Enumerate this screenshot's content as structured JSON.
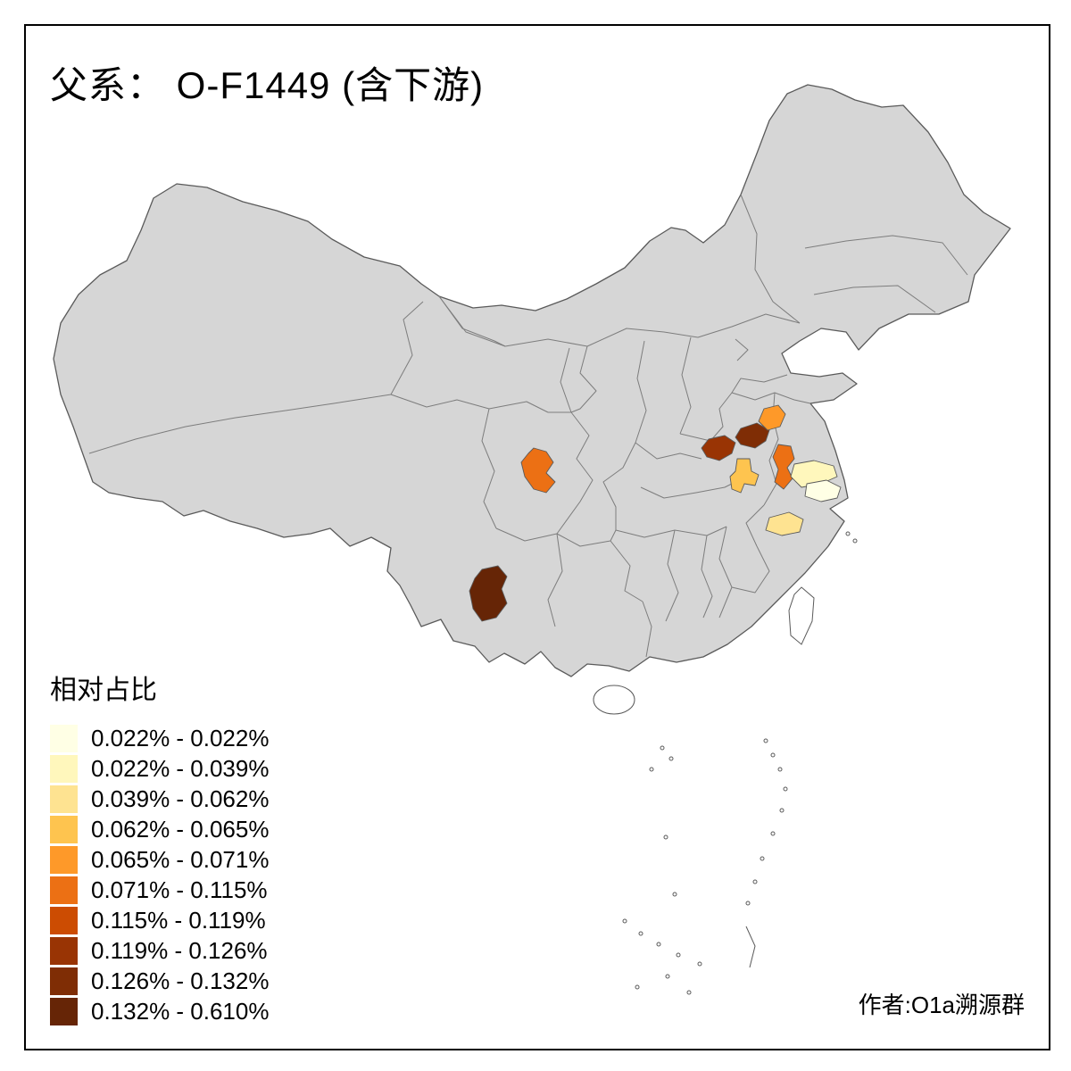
{
  "title": "父系： O-F1449 (含下游)",
  "credit": "作者:O1a溯源群",
  "legend": {
    "title": "相对占比",
    "items": [
      {
        "label": "0.022% - 0.022%",
        "color": "#FFFFE5"
      },
      {
        "label": "0.022% - 0.039%",
        "color": "#FFF7BC"
      },
      {
        "label": "0.039% - 0.062%",
        "color": "#FEE391"
      },
      {
        "label": "0.062% - 0.065%",
        "color": "#FEC44F"
      },
      {
        "label": "0.065% - 0.071%",
        "color": "#FE9929"
      },
      {
        "label": "0.071% - 0.115%",
        "color": "#EC7014"
      },
      {
        "label": "0.115% - 0.119%",
        "color": "#CC4C02"
      },
      {
        "label": "0.119% - 0.126%",
        "color": "#993404"
      },
      {
        "label": "0.126% - 0.132%",
        "color": "#7F2D05"
      },
      {
        "label": "0.132% - 0.610%",
        "color": "#662506"
      }
    ]
  },
  "map": {
    "base_fill": "#D6D6D6",
    "border_color": "#5A5A5A",
    "province_border_color": "#7D7D7D",
    "island_fill": "#FFFFFF",
    "regions": [
      {
        "name": "sichuan-highlight",
        "color": "#EC7014"
      },
      {
        "name": "yunnan-highlight",
        "color": "#662506"
      },
      {
        "name": "henan-highlight",
        "color": "#993404"
      },
      {
        "name": "huaibei-highlight",
        "color": "#7F2D05"
      },
      {
        "name": "subei-highlight",
        "color": "#FE9929"
      },
      {
        "name": "anhui-highlight",
        "color": "#FEC44F"
      },
      {
        "name": "yangzhou-highlight",
        "color": "#EC7014"
      },
      {
        "name": "yancheng-highlight",
        "color": "#FFF7BC"
      },
      {
        "name": "nantong-highlight",
        "color": "#FFFFE5"
      },
      {
        "name": "sunan-highlight",
        "color": "#FEE391"
      }
    ]
  }
}
